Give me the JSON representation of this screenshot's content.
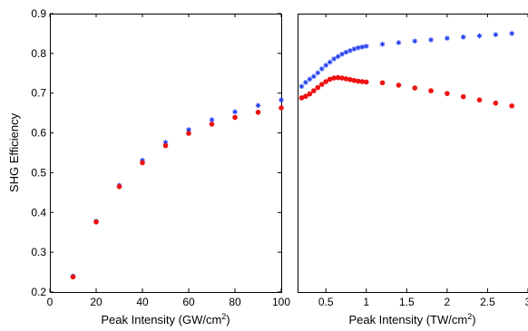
{
  "chart_data": [
    {
      "type": "scatter",
      "xlabel": "Peak Intensity (GW/cm",
      "xlabel_sup": "2",
      "xlabel_end": ")",
      "ylabel": "SHG Efficiency",
      "xlim": [
        0,
        100
      ],
      "ylim": [
        0.2,
        0.9
      ],
      "xticks": [
        0,
        20,
        40,
        60,
        80,
        100
      ],
      "xtick_labels": [
        "0",
        "20",
        "40",
        "60",
        "80",
        "100"
      ],
      "yticks": [
        0.2,
        0.3,
        0.4,
        0.5,
        0.6,
        0.7,
        0.8,
        0.9
      ],
      "ytick_labels": [
        "0.2",
        "0.3",
        "0.4",
        "0.5",
        "0.6",
        "0.7",
        "0.8",
        "0.9"
      ],
      "grid": false,
      "series": [
        {
          "marker": "star",
          "color": "#1f3cf0",
          "x": [
            10,
            20,
            30,
            40,
            50,
            60,
            70,
            80,
            90,
            100
          ],
          "y": [
            0.24,
            0.378,
            0.468,
            0.531,
            0.576,
            0.608,
            0.633,
            0.653,
            0.669,
            0.683
          ]
        },
        {
          "marker": "dot",
          "color": "#ee1111",
          "x": [
            10,
            20,
            30,
            40,
            50,
            60,
            70,
            80,
            90,
            100
          ],
          "y": [
            0.238,
            0.376,
            0.465,
            0.525,
            0.568,
            0.599,
            0.622,
            0.639,
            0.652,
            0.663
          ]
        }
      ]
    },
    {
      "type": "scatter",
      "xlabel": "Peak Intensity (TW/cm",
      "xlabel_sup": "2",
      "xlabel_end": ")",
      "ylabel": "",
      "xlim": [
        0.15,
        3.0
      ],
      "ylim": [
        0.2,
        0.9
      ],
      "xticks": [
        0.5,
        1,
        1.5,
        2,
        2.5,
        3
      ],
      "xtick_labels": [
        "0.5",
        "1",
        "1.5",
        "2",
        "2.5",
        "3"
      ],
      "grid": false,
      "series": [
        {
          "marker": "star",
          "color": "#1f3cf0",
          "x": [
            0.2,
            0.25,
            0.3,
            0.35,
            0.4,
            0.45,
            0.5,
            0.55,
            0.6,
            0.65,
            0.7,
            0.75,
            0.8,
            0.85,
            0.9,
            0.95,
            1.0,
            1.2,
            1.4,
            1.6,
            1.8,
            2.0,
            2.2,
            2.4,
            2.6,
            2.8,
            3.0
          ],
          "y": [
            0.717,
            0.727,
            0.735,
            0.742,
            0.751,
            0.761,
            0.77,
            0.778,
            0.786,
            0.792,
            0.798,
            0.803,
            0.807,
            0.811,
            0.814,
            0.816,
            0.818,
            0.823,
            0.827,
            0.831,
            0.834,
            0.838,
            0.841,
            0.844,
            0.847,
            0.85,
            0.853
          ]
        },
        {
          "marker": "dot",
          "color": "#ee1111",
          "x": [
            0.2,
            0.25,
            0.3,
            0.35,
            0.4,
            0.45,
            0.5,
            0.55,
            0.6,
            0.65,
            0.7,
            0.75,
            0.8,
            0.85,
            0.9,
            0.95,
            1.0,
            1.2,
            1.4,
            1.6,
            1.8,
            2.0,
            2.2,
            2.4,
            2.6,
            2.8,
            3.0
          ],
          "y": [
            0.688,
            0.692,
            0.698,
            0.706,
            0.714,
            0.722,
            0.729,
            0.735,
            0.738,
            0.739,
            0.738,
            0.736,
            0.734,
            0.732,
            0.73,
            0.729,
            0.728,
            0.726,
            0.72,
            0.713,
            0.706,
            0.699,
            0.691,
            0.683,
            0.675,
            0.668,
            0.66
          ]
        }
      ]
    }
  ]
}
